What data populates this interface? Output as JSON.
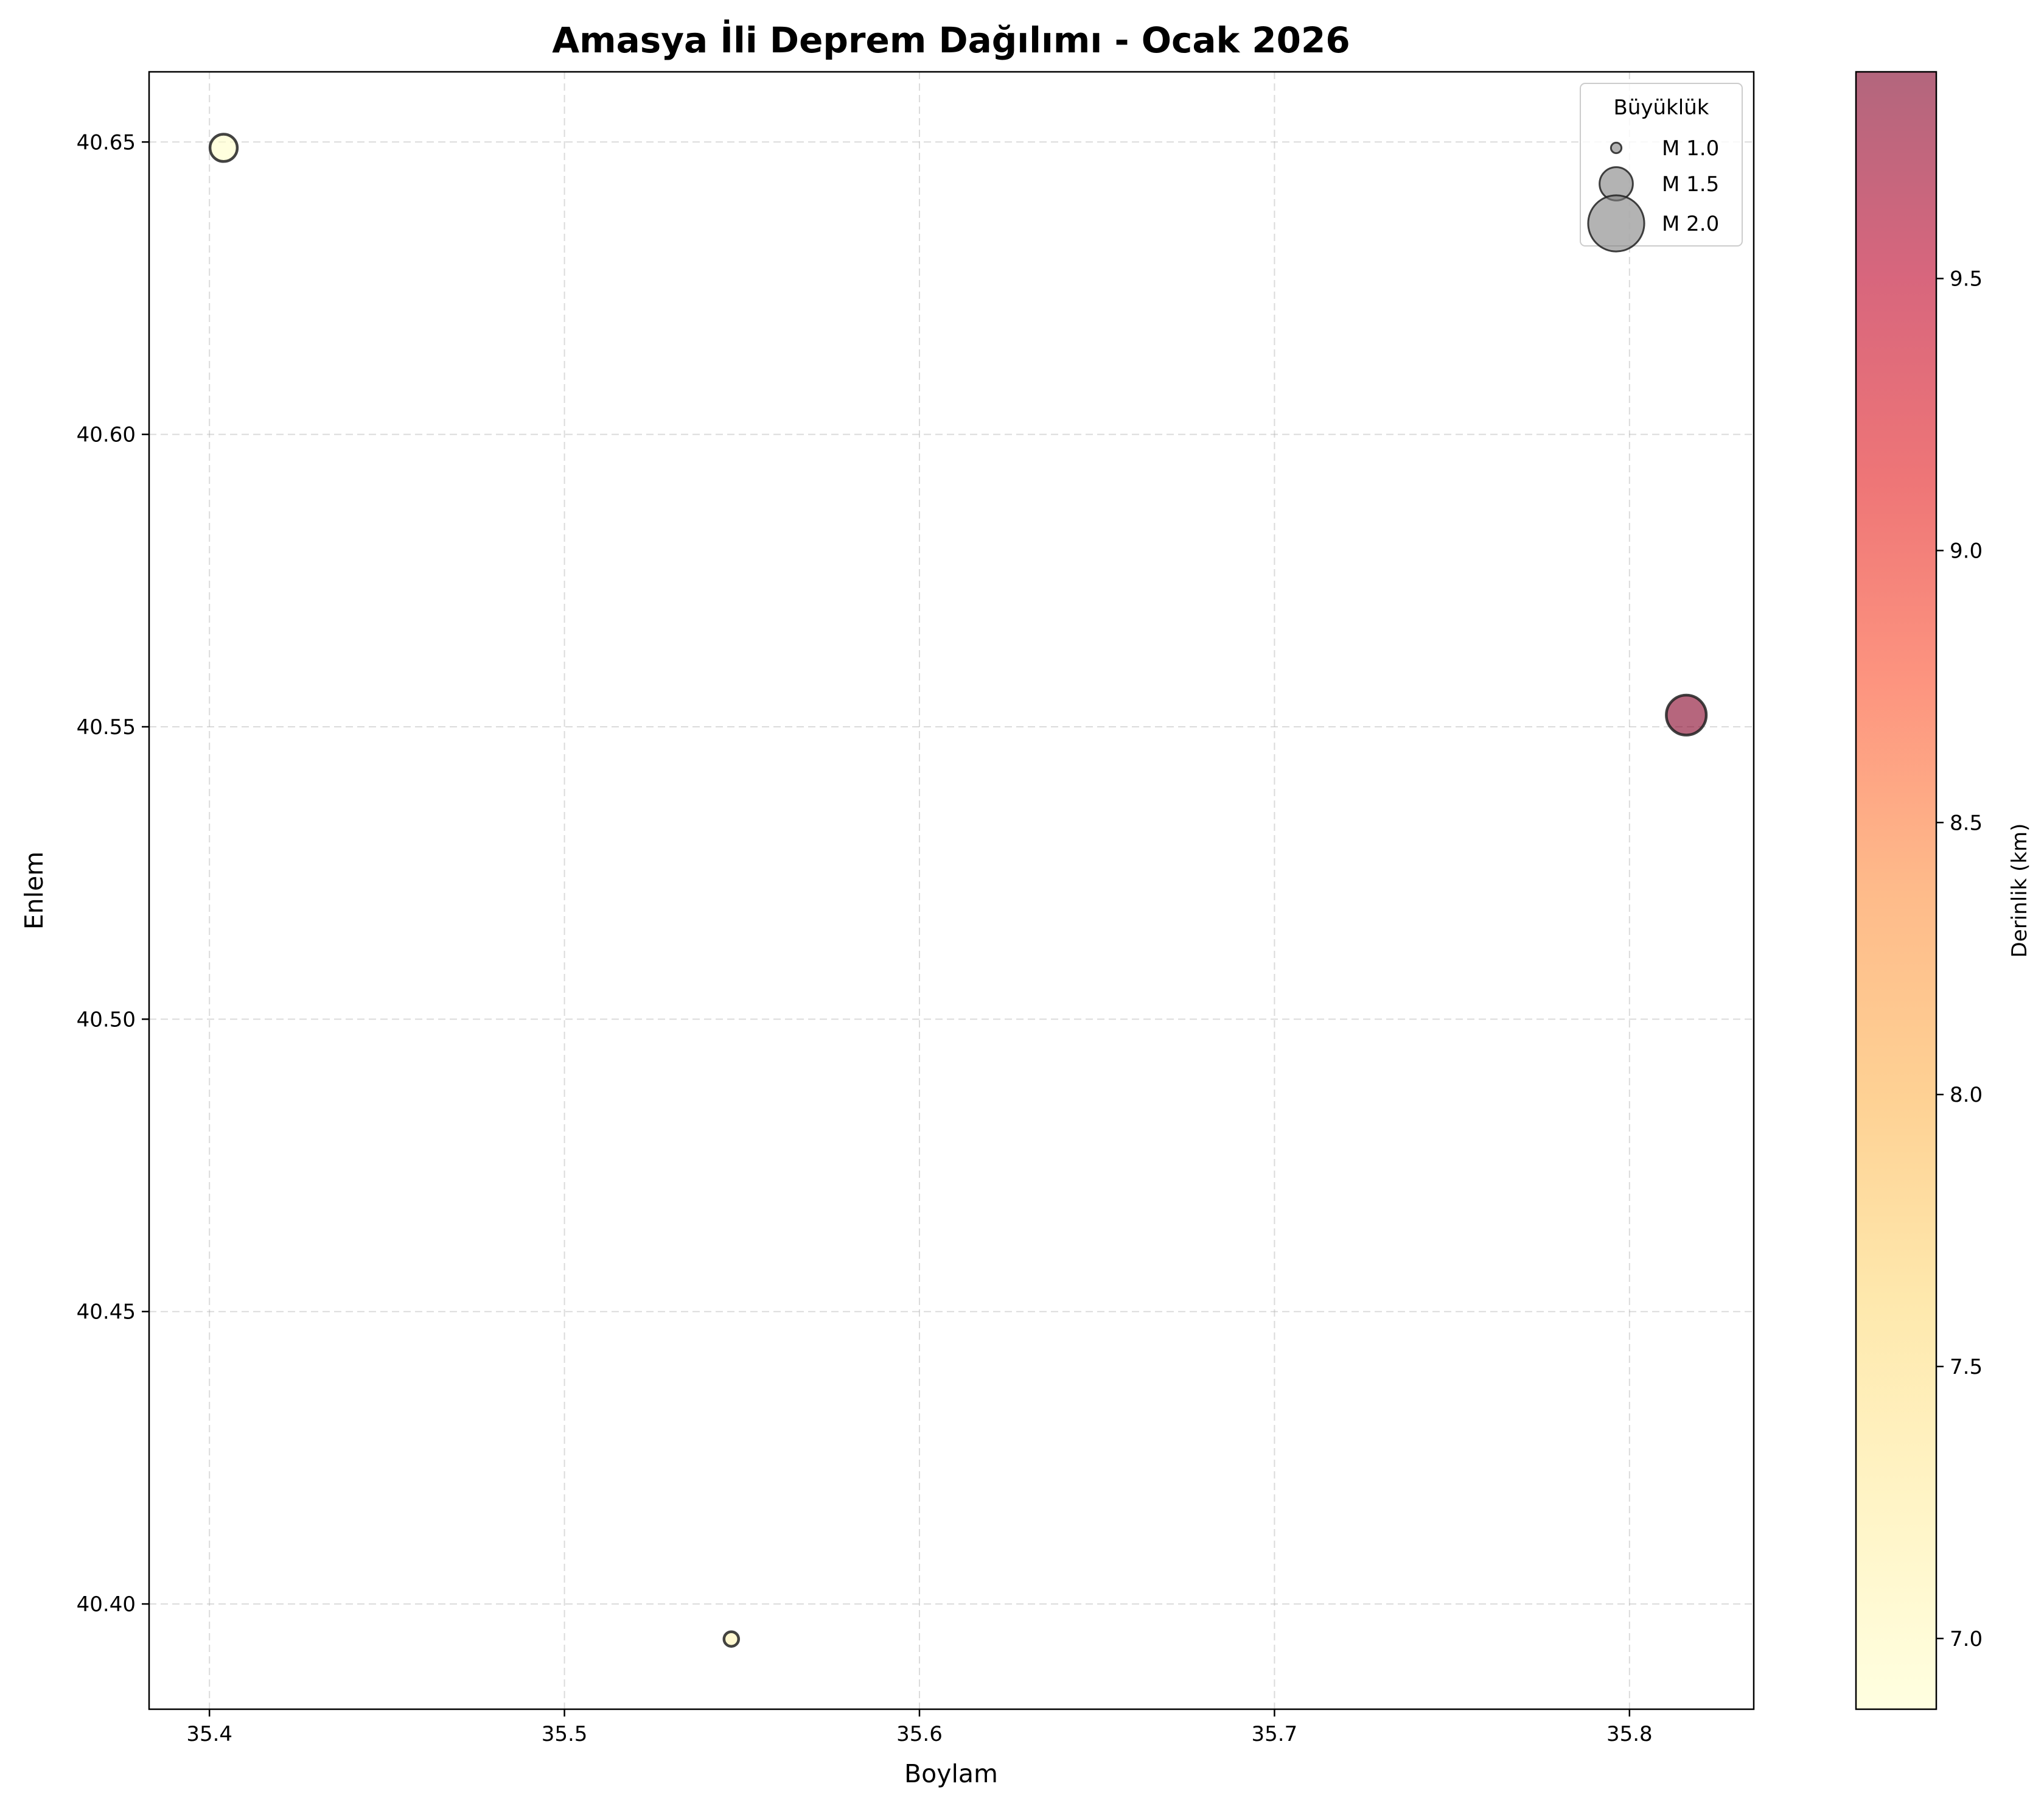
{
  "chart_data": {
    "type": "scatter",
    "title": "Amasya İli Deprem Dağılımı - Ocak 2026",
    "xlabel": "Boylam",
    "ylabel": "Enlem",
    "xlim": [
      35.383,
      35.835
    ],
    "ylim": [
      40.382,
      40.662
    ],
    "xticks": [
      "35.4",
      "35.5",
      "35.6",
      "35.7",
      "35.8"
    ],
    "yticks": [
      "40.40",
      "40.45",
      "40.50",
      "40.55",
      "40.60",
      "40.65"
    ],
    "grid": true,
    "points": [
      {
        "x": 35.404,
        "y": 40.649,
        "magnitude": 1.2,
        "depth": 6.9
      },
      {
        "x": 35.547,
        "y": 40.394,
        "magnitude": 1.0,
        "depth": 7.1
      },
      {
        "x": 35.816,
        "y": 40.552,
        "magnitude": 1.4,
        "depth": 9.85
      }
    ],
    "legend": {
      "title": "Büyüklük",
      "placement": "top-right",
      "entries": [
        {
          "label": "M 1.0",
          "magnitude": 1.0
        },
        {
          "label": "M 1.5",
          "magnitude": 1.5
        },
        {
          "label": "M 2.0",
          "magnitude": 2.0
        }
      ]
    },
    "colorbar": {
      "label": "Derinlik (km)",
      "range": [
        6.87,
        9.88
      ],
      "ticks": [
        "7.0",
        "7.5",
        "8.0",
        "8.5",
        "9.0",
        "9.5"
      ],
      "colormap": [
        "#ffffcc",
        "#ffeda0",
        "#fed976",
        "#feb24c",
        "#fd8d3c",
        "#fc4e2a",
        "#e31a1c",
        "#bd0026",
        "#800026"
      ],
      "alpha": 0.6
    }
  }
}
